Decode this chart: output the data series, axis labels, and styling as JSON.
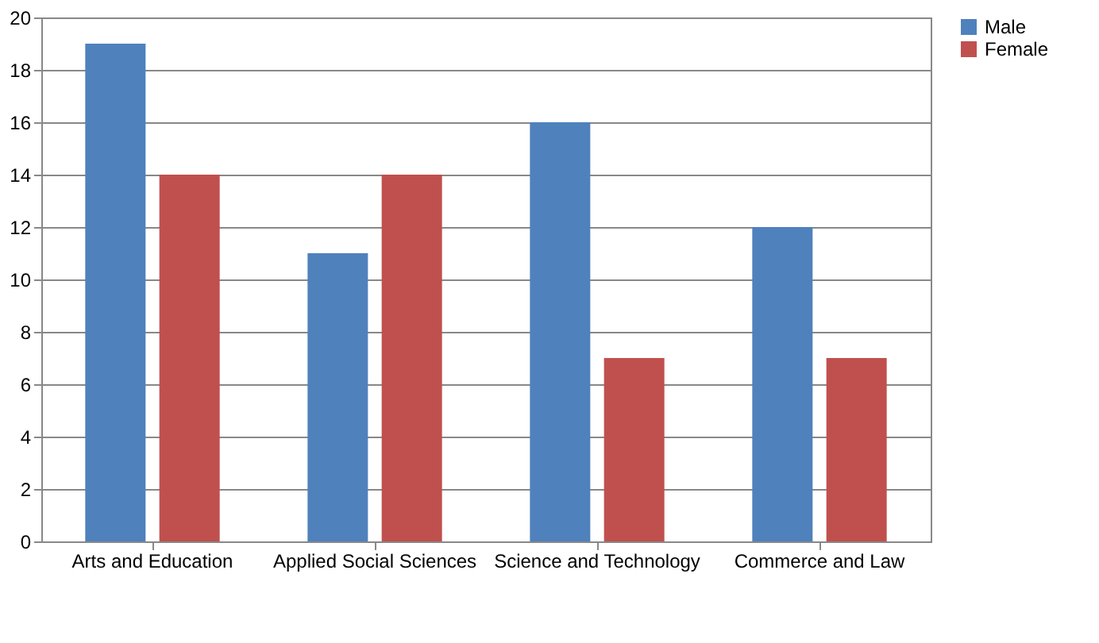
{
  "chart_data": {
    "type": "bar",
    "categories": [
      "Arts and Education",
      "Applied Social Sciences",
      "Science and Technology",
      "Commerce and Law"
    ],
    "series": [
      {
        "name": "Male",
        "color": "#4f81bd",
        "values": [
          19,
          11,
          16,
          12
        ]
      },
      {
        "name": "Female",
        "color": "#c0504d",
        "values": [
          14,
          14,
          7,
          7
        ]
      }
    ],
    "ylim": [
      0,
      20
    ],
    "yticks": [
      0,
      2,
      4,
      6,
      8,
      10,
      12,
      14,
      16,
      18,
      20
    ],
    "grid": "y",
    "legend": "right"
  }
}
